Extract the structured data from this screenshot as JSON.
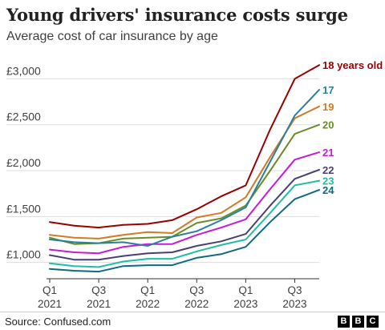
{
  "title": "Young drivers' insurance costs surge",
  "subtitle": "Average cost of car insurance by age",
  "source": "Source: Confused.com",
  "logo_letters": [
    "B",
    "B",
    "C"
  ],
  "chart_data": {
    "type": "line",
    "title": "Young drivers' insurance costs surge",
    "subtitle": "Average cost of car insurance by age",
    "xlabel": "",
    "ylabel": "",
    "ylim": [
      840,
      3300
    ],
    "y_ticks": [
      {
        "value": 1000,
        "label": "£1,000"
      },
      {
        "value": 1500,
        "label": "£1,500"
      },
      {
        "value": 2000,
        "label": "£2,000"
      },
      {
        "value": 2500,
        "label": "£2,500"
      },
      {
        "value": 3000,
        "label": "£3,000"
      }
    ],
    "x_ticks": [
      {
        "index": 0,
        "line1": "Q1",
        "line2": "2021"
      },
      {
        "index": 2,
        "line1": "Q3",
        "line2": "2021"
      },
      {
        "index": 4,
        "line1": "Q1",
        "line2": "2022"
      },
      {
        "index": 6,
        "line1": "Q3",
        "line2": "2022"
      },
      {
        "index": 8,
        "line1": "Q1",
        "line2": "2023"
      },
      {
        "index": 10,
        "line1": "Q3",
        "line2": "2023"
      }
    ],
    "grid": "horizontal",
    "legend": "direct labels at line ends",
    "x": [
      "Q1 2021",
      "Q2 2021",
      "Q3 2021",
      "Q4 2021",
      "Q1 2022",
      "Q2 2022",
      "Q3 2022",
      "Q4 2022",
      "Q1 2023",
      "Q2 2023",
      "Q3 2023",
      "Q4 2023"
    ],
    "series": [
      {
        "name": "18 years old",
        "color": "#990000",
        "values": [
          1440,
          1400,
          1380,
          1410,
          1420,
          1460,
          1580,
          1720,
          1840,
          2450,
          3000,
          3150
        ]
      },
      {
        "name": "17",
        "color": "#2a7f9e",
        "values": [
          1250,
          1220,
          1210,
          1220,
          1180,
          1280,
          1340,
          1460,
          1600,
          2100,
          2600,
          2880
        ]
      },
      {
        "name": "19",
        "color": "#d17b26",
        "values": [
          1300,
          1270,
          1260,
          1300,
          1330,
          1320,
          1490,
          1540,
          1710,
          2150,
          2570,
          2700
        ]
      },
      {
        "name": "20",
        "color": "#6b8e23",
        "values": [
          1270,
          1200,
          1210,
          1260,
          1270,
          1280,
          1430,
          1480,
          1620,
          2000,
          2400,
          2500
        ]
      },
      {
        "name": "21",
        "color": "#c61ad6",
        "values": [
          1140,
          1110,
          1100,
          1170,
          1200,
          1200,
          1300,
          1380,
          1470,
          1800,
          2120,
          2200
        ]
      },
      {
        "name": "22",
        "color": "#4b3f72",
        "values": [
          1080,
          1030,
          1030,
          1070,
          1100,
          1110,
          1180,
          1230,
          1310,
          1620,
          1910,
          2010
        ]
      },
      {
        "name": "23",
        "color": "#1fbf9f",
        "values": [
          990,
          960,
          950,
          1010,
          1040,
          1040,
          1120,
          1190,
          1250,
          1540,
          1840,
          1890
        ]
      },
      {
        "name": "24",
        "color": "#0f6a80",
        "values": [
          930,
          910,
          900,
          960,
          970,
          970,
          1050,
          1090,
          1170,
          1440,
          1690,
          1790
        ]
      }
    ],
    "end_labels": [
      "18 years old",
      "17",
      "19",
      "20",
      "21",
      "22",
      "23",
      "24"
    ]
  }
}
